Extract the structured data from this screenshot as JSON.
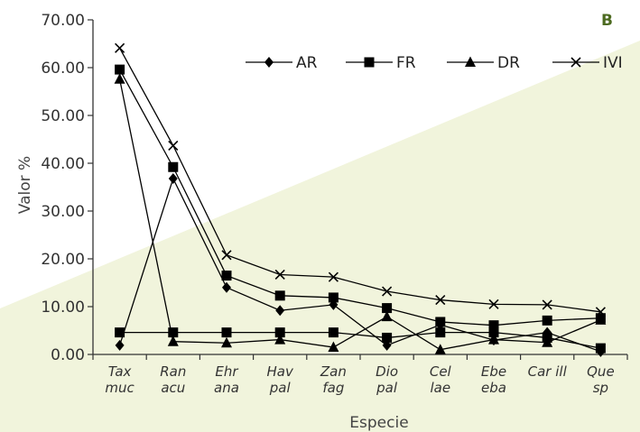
{
  "panel_label": "B",
  "colors": {
    "background_wedge": "#f1f4dc",
    "panel_label": "#4d6b21",
    "series": "#000000",
    "axis": "#333333"
  },
  "chart_data": {
    "type": "line",
    "title": "",
    "xlabel": "Especie",
    "ylabel": "Valor %",
    "ylim": [
      0,
      70
    ],
    "yticks": [
      "0.00",
      "10.00",
      "20.00",
      "30.00",
      "40.00",
      "50.00",
      "60.00",
      "70.00"
    ],
    "categories": [
      [
        "Tax",
        "muc"
      ],
      [
        "Ran",
        "acu"
      ],
      [
        "Ehr",
        "ana"
      ],
      [
        "Hav",
        "pal"
      ],
      [
        "Zan",
        "fag"
      ],
      [
        "Dio",
        "pal"
      ],
      [
        "Cel",
        "lae"
      ],
      [
        "Ebe",
        "eba"
      ],
      [
        "Car ill"
      ],
      [
        "Que",
        "sp"
      ]
    ],
    "legend_position": "top-right",
    "grid": false,
    "series": [
      {
        "name": "AR",
        "marker": "diamond",
        "values": [
          1.9,
          36.8,
          14.0,
          9.2,
          10.4,
          1.9,
          6.2,
          3.0,
          4.6,
          0.6
        ]
      },
      {
        "name": "FR",
        "marker": "square",
        "values": [
          4.6,
          4.6,
          4.6,
          4.6,
          4.6,
          3.5,
          4.6,
          4.6,
          3.5,
          1.3
        ]
      },
      {
        "name": "DR",
        "marker": "triangle",
        "values": [
          57.6,
          2.7,
          2.4,
          3.1,
          1.5,
          7.9,
          1.0,
          3.1,
          2.5,
          7.2
        ]
      },
      {
        "name": "IVI",
        "marker": "x",
        "values": [
          64.1,
          43.7,
          20.8,
          16.7,
          16.2,
          13.2,
          11.4,
          10.5,
          10.4,
          8.9
        ]
      },
      {
        "name": "",
        "marker": "square",
        "values": [
          59.6,
          39.2,
          16.5,
          12.3,
          11.9,
          9.7,
          6.8,
          6.1,
          7.1,
          7.6
        ]
      }
    ]
  }
}
